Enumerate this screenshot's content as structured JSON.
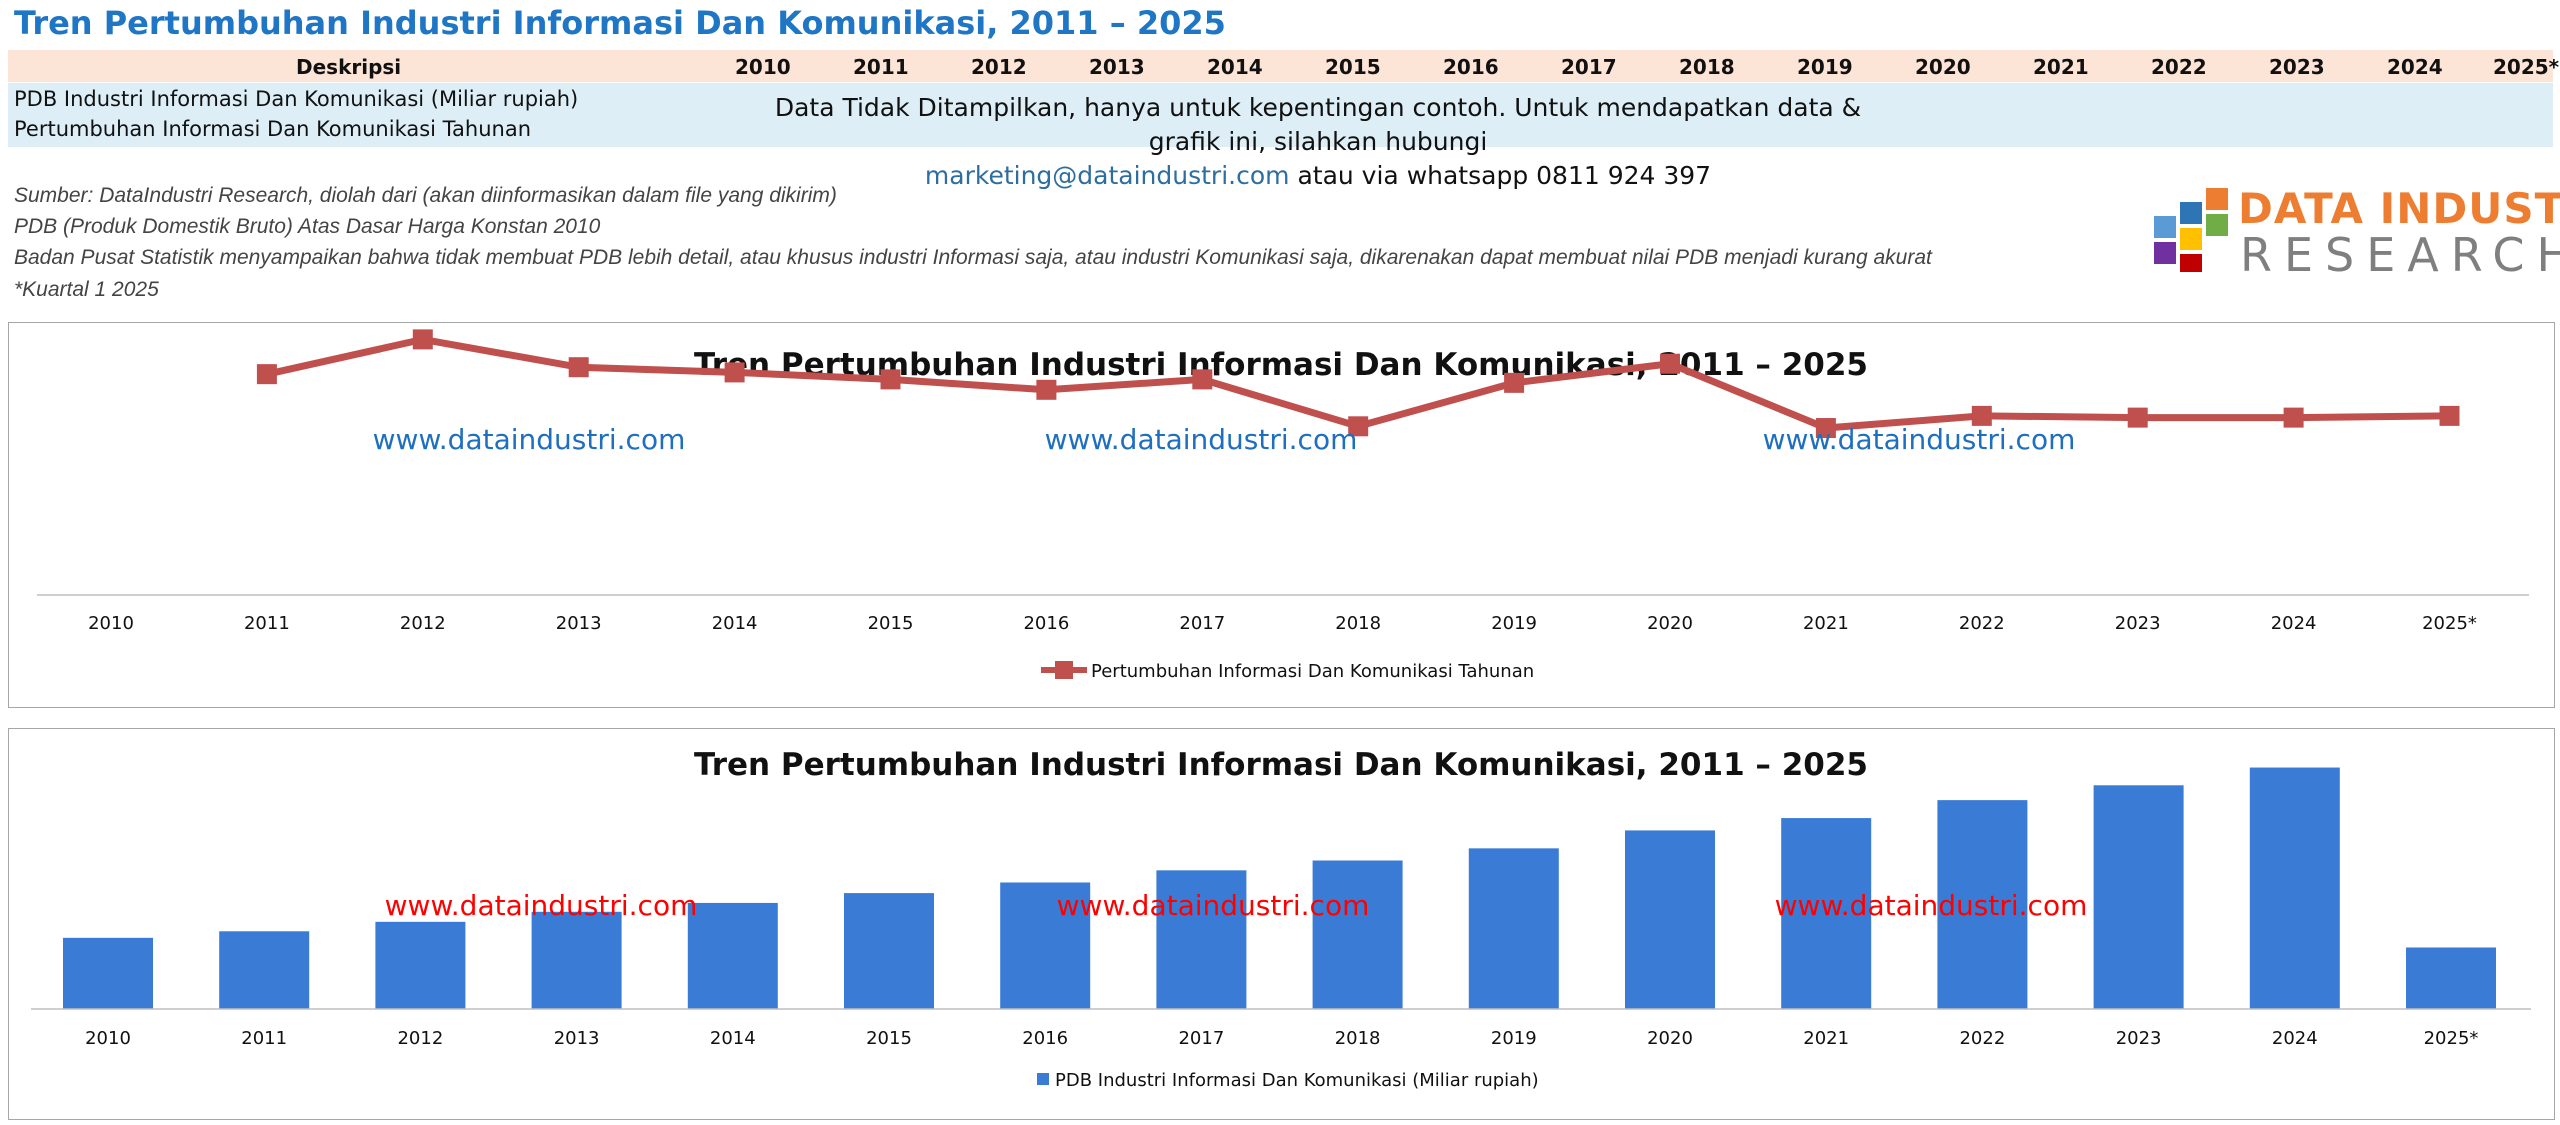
{
  "page_title": "Tren Pertumbuhan Industri Informasi Dan Komunikasi, 2011 – 2025",
  "table": {
    "header_label": "Deskripsi",
    "years": [
      "2010",
      "2011",
      "2012",
      "2013",
      "2014",
      "2015",
      "2016",
      "2017",
      "2018",
      "2019",
      "2020",
      "2021",
      "2022",
      "2023",
      "2024",
      "2025*"
    ],
    "rows": [
      "PDB Industri Informasi Dan Komunikasi (Miliar rupiah)",
      "Pertumbuhan Informasi Dan Komunikasi Tahunan"
    ],
    "notice_line1": "Data Tidak Ditampilkan, hanya untuk kepentingan contoh. Untuk mendapatkan data & grafik  ini, silahkan hubungi",
    "notice_email": "marketing@dataindustri.com",
    "notice_line2_rest": " atau via whatsapp 0811 924 397"
  },
  "notes": [
    "Sumber: DataIndustri Research, diolah dari (akan diinformasikan dalam file yang dikirim)",
    "PDB (Produk Domestik Bruto) Atas Dasar Harga Konstan 2010",
    "Badan Pusat Statistik menyampaikan bahwa tidak membuat PDB lebih detail, atau khusus industri Informasi saja, atau industri Komunikasi saja, dikarenakan dapat membuat nilai PDB menjadi kurang akurat",
    "*Kuartal 1 2025"
  ],
  "logo": {
    "line1": "DATA INDUSTRI",
    "line2": "RESEARCH"
  },
  "watermark": "www.dataindustri.com",
  "colors": {
    "title_blue": "#1f76c4",
    "line_red": "#c0504d",
    "bar_blue": "#3a7bd5",
    "watermark_blue": "#1f6fbf",
    "watermark_red": "#ff0000",
    "logo_orange": "#ed7d31",
    "logo_grey": "#7f7f7f"
  },
  "chart_data": [
    {
      "type": "line",
      "title": "Tren Pertumbuhan Industri Informasi Dan Komunikasi, 2011 – 2025",
      "categories": [
        "2010",
        "2011",
        "2012",
        "2013",
        "2014",
        "2015",
        "2016",
        "2017",
        "2018",
        "2019",
        "2020",
        "2021",
        "2022",
        "2023",
        "2024",
        "2025*"
      ],
      "series": [
        {
          "name": "Pertumbuhan Informasi Dan Komunikasi Tahunan",
          "values": [
            null,
            10.0,
            12.0,
            10.4,
            10.1,
            9.7,
            9.1,
            9.7,
            7.0,
            9.5,
            10.6,
            6.9,
            7.6,
            7.5,
            7.5,
            7.6
          ]
        }
      ],
      "ylim": [
        0,
        13
      ],
      "grid": false,
      "legend": "bottom-center"
    },
    {
      "type": "bar",
      "title": "Tren Pertumbuhan Industri Informasi Dan Komunikasi, 2011 – 2025",
      "categories": [
        "2010",
        "2011",
        "2012",
        "2013",
        "2014",
        "2015",
        "2016",
        "2017",
        "2018",
        "2019",
        "2020",
        "2021",
        "2022",
        "2023",
        "2024",
        "2025*"
      ],
      "series": [
        {
          "name": "PDB Industri Informasi Dan Komunikasi (Miliar rupiah)",
          "values": [
            369,
            403,
            452,
            504,
            550,
            601,
            656,
            719,
            770,
            833,
            926,
            990,
            1083,
            1160,
            1252,
            319
          ]
        }
      ],
      "ylim": [
        0,
        1400
      ],
      "grid": false,
      "legend": "bottom-center"
    }
  ]
}
